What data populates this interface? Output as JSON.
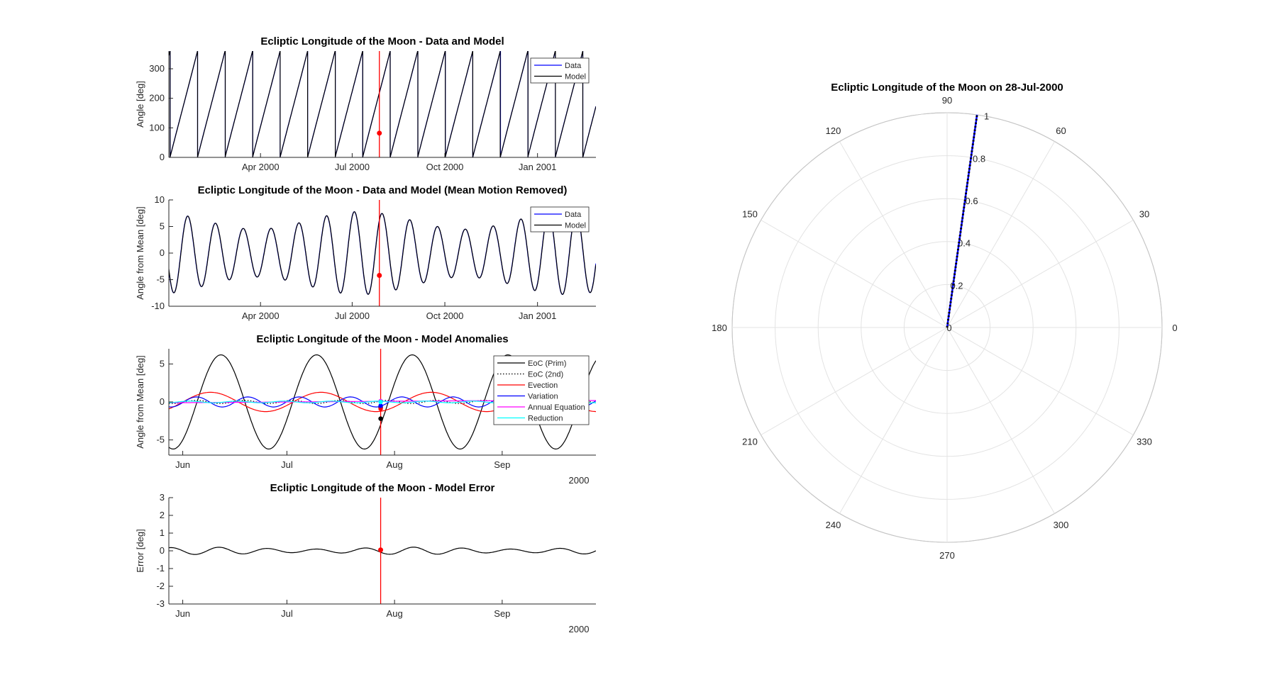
{
  "chart_data": [
    {
      "type": "line",
      "title": "Ecliptic Longitude of the Moon - Data and Model",
      "ylabel": "Angle [deg]",
      "xlabel": "",
      "x_range": [
        "2000-01-01",
        "2001-02-28"
      ],
      "ylim": [
        0,
        360
      ],
      "yticks": [
        0,
        100,
        200,
        300
      ],
      "xticks": [
        {
          "date": "2000-04-01",
          "label": "Apr 2000"
        },
        {
          "date": "2000-07-01",
          "label": "Jul 2000"
        },
        {
          "date": "2000-10-01",
          "label": "Oct 2000"
        },
        {
          "date": "2001-01-01",
          "label": "Jan 2001"
        }
      ],
      "series": [
        {
          "name": "Data",
          "color": "#0000ff",
          "pattern": "sawtooth",
          "values_deg": [
            0,
            360
          ],
          "period_days": 27.32,
          "start_date": "2000-01-01",
          "start_value": 345
        },
        {
          "name": "Model",
          "color": "#000000",
          "pattern": "sawtooth",
          "values_deg": [
            0,
            360
          ],
          "period_days": 27.32,
          "start_date": "2000-01-01",
          "start_value": 345
        }
      ],
      "marker": {
        "date": "2000-07-28",
        "value": 82,
        "color": "#ff0000"
      },
      "cursor_date": "2000-07-28",
      "legend_placement": "top-right",
      "grid": false
    },
    {
      "type": "line",
      "title": "Ecliptic Longitude of the Moon - Data and Model (Mean Motion Removed)",
      "ylabel": "Angle from Mean [deg]",
      "xlabel": "",
      "x_range": [
        "2000-01-01",
        "2001-02-28"
      ],
      "ylim": [
        -10,
        10
      ],
      "yticks": [
        -10,
        -5,
        0,
        5,
        10
      ],
      "xticks": [
        {
          "date": "2000-04-01",
          "label": "Apr 2000"
        },
        {
          "date": "2000-07-01",
          "label": "Jul 2000"
        },
        {
          "date": "2000-10-01",
          "label": "Oct 2000"
        },
        {
          "date": "2001-01-01",
          "label": "Jan 2001"
        }
      ],
      "series": [
        {
          "name": "Data",
          "color": "#0000ff"
        },
        {
          "name": "Model",
          "color": "#000000"
        }
      ],
      "oscillation": {
        "period_days": 27.55,
        "amplitude_deg_range": [
          4.5,
          7.8
        ],
        "beat_period_days": 206
      },
      "marker": {
        "date": "2000-07-28",
        "value": -4.2,
        "color": "#ff0000"
      },
      "cursor_date": "2000-07-28",
      "legend_placement": "top-right",
      "grid": false
    },
    {
      "type": "line",
      "title": "Ecliptic Longitude of the Moon - Model Anomalies",
      "ylabel": "Angle from Mean [deg]",
      "xlabel": "2000",
      "x_range": [
        "2000-05-28",
        "2000-09-28"
      ],
      "ylim": [
        -7,
        7
      ],
      "yticks": [
        -5,
        0,
        5
      ],
      "xticks": [
        {
          "date": "2000-06-01",
          "label": "Jun"
        },
        {
          "date": "2000-07-01",
          "label": "Jul"
        },
        {
          "date": "2000-08-01",
          "label": "Aug"
        },
        {
          "date": "2000-09-01",
          "label": "Sep"
        }
      ],
      "series": [
        {
          "name": "EoC (Prim)",
          "color": "#000000",
          "style": "solid",
          "amplitude": 6.2,
          "period_days": 27.55,
          "peak_date": "2000-06-12",
          "marker_value": -2.2
        },
        {
          "name": "EoC (2nd)",
          "color": "#000000",
          "style": "dotted",
          "amplitude": 0.21,
          "period_days": 13.78,
          "peak_date": "2000-06-05",
          "marker_value": -0.7
        },
        {
          "name": "Evection",
          "color": "#ff0000",
          "style": "solid",
          "amplitude": 1.27,
          "period_days": 31.8,
          "peak_date": "2000-06-09",
          "marker_value": -0.9
        },
        {
          "name": "Variation",
          "color": "#0000ff",
          "style": "solid",
          "amplitude": 0.66,
          "period_days": 14.77,
          "peak_date": "2000-06-05",
          "marker_value": -0.5
        },
        {
          "name": "Annual Equation",
          "color": "#ff00ff",
          "style": "solid",
          "amplitude": 0.19,
          "period_days": 365.26,
          "peak_date": "2000-10-01",
          "marker_value": 0.1
        },
        {
          "name": "Reduction",
          "color": "#00ffff",
          "style": "solid",
          "amplitude": 0.11,
          "period_days": 13.6,
          "peak_date": "2000-06-03",
          "marker_value": 0.0
        }
      ],
      "cursor_date": "2000-07-28",
      "legend_placement": "top-right",
      "grid": false
    },
    {
      "type": "line",
      "title": "Ecliptic Longitude of the Moon - Model Error",
      "ylabel": "Error [deg]",
      "xlabel": "2000",
      "x_range": [
        "2000-05-28",
        "2000-09-28"
      ],
      "ylim": [
        -3,
        3
      ],
      "yticks": [
        -3,
        -2,
        -1,
        0,
        1,
        2,
        3
      ],
      "xticks": [
        {
          "date": "2000-06-01",
          "label": "Jun"
        },
        {
          "date": "2000-07-01",
          "label": "Jul"
        },
        {
          "date": "2000-08-01",
          "label": "Aug"
        },
        {
          "date": "2000-09-01",
          "label": "Sep"
        }
      ],
      "series": [
        {
          "name": "Error",
          "color": "#000000",
          "amplitude_deg_range": [
            0.1,
            0.25
          ],
          "period_days": 14.0
        }
      ],
      "marker": {
        "date": "2000-07-28",
        "value": 0.05,
        "color": "#ff0000"
      },
      "cursor_date": "2000-07-28",
      "grid": false
    },
    {
      "type": "polar",
      "title": "Ecliptic Longitude of the Moon on 28-Jul-2000",
      "theta_ticks_deg": [
        0,
        30,
        60,
        90,
        120,
        150,
        180,
        210,
        240,
        270,
        300,
        330
      ],
      "r_ticks": [
        0,
        0.2,
        0.4,
        0.6,
        0.8,
        1
      ],
      "rlim": [
        0,
        1
      ],
      "series": [
        {
          "name": "Data",
          "color": "#0000ff",
          "theta_deg": 82,
          "r_range": [
            0,
            1
          ]
        },
        {
          "name": "Model",
          "color": "#000000",
          "style": "dotted",
          "theta_deg": 82,
          "r_range": [
            0,
            1
          ]
        }
      ],
      "grid": true
    }
  ]
}
